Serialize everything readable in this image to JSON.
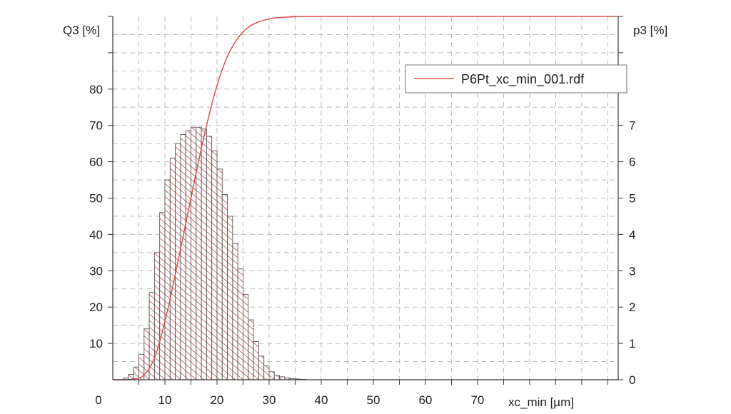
{
  "chart_data": {
    "type": "histogram_with_cumulative_line",
    "xlabel": "xc_min [µm]",
    "ylabel_left": "Q3 [%]",
    "ylabel_right": "p3 [%]",
    "x_ticks": [
      0,
      10,
      20,
      30,
      40,
      50,
      60,
      70
    ],
    "y_left_ticks": [
      10,
      20,
      30,
      40,
      50,
      60,
      70,
      80
    ],
    "y_right_ticks": [
      0,
      1,
      2,
      3,
      4,
      5,
      6,
      7
    ],
    "xlim": [
      0,
      97
    ],
    "ylim_left": [
      0,
      100
    ],
    "ylim_right": [
      0,
      10
    ],
    "grid": true,
    "legend_position": "top-right",
    "series_colors": {
      "line": "#d9534f",
      "bars": "#c0504d"
    },
    "histogram": {
      "name": "p3",
      "bin_width": 1,
      "x_start": 2,
      "values": [
        0.05,
        0.15,
        0.35,
        0.7,
        1.4,
        2.4,
        3.5,
        4.6,
        5.5,
        6.1,
        6.5,
        6.75,
        6.85,
        6.95,
        6.95,
        6.9,
        6.7,
        6.3,
        5.8,
        5.1,
        4.5,
        3.75,
        3.05,
        2.35,
        1.65,
        1.05,
        0.65,
        0.38,
        0.22,
        0.12,
        0.08,
        0.05,
        0.03,
        0.02,
        0.01
      ]
    },
    "cumulative": {
      "name": "P6Pt_xc_min_001.rdf",
      "x": [
        0,
        2,
        4,
        6,
        8,
        10,
        12,
        14,
        16,
        18,
        20,
        22,
        24,
        26,
        28,
        30,
        32,
        35,
        40,
        97
      ],
      "values": [
        0,
        0,
        0.2,
        1.3,
        6,
        16,
        29,
        43,
        57,
        70,
        81,
        89,
        94,
        97,
        98.5,
        99.3,
        99.7,
        99.9,
        100,
        100
      ]
    }
  }
}
